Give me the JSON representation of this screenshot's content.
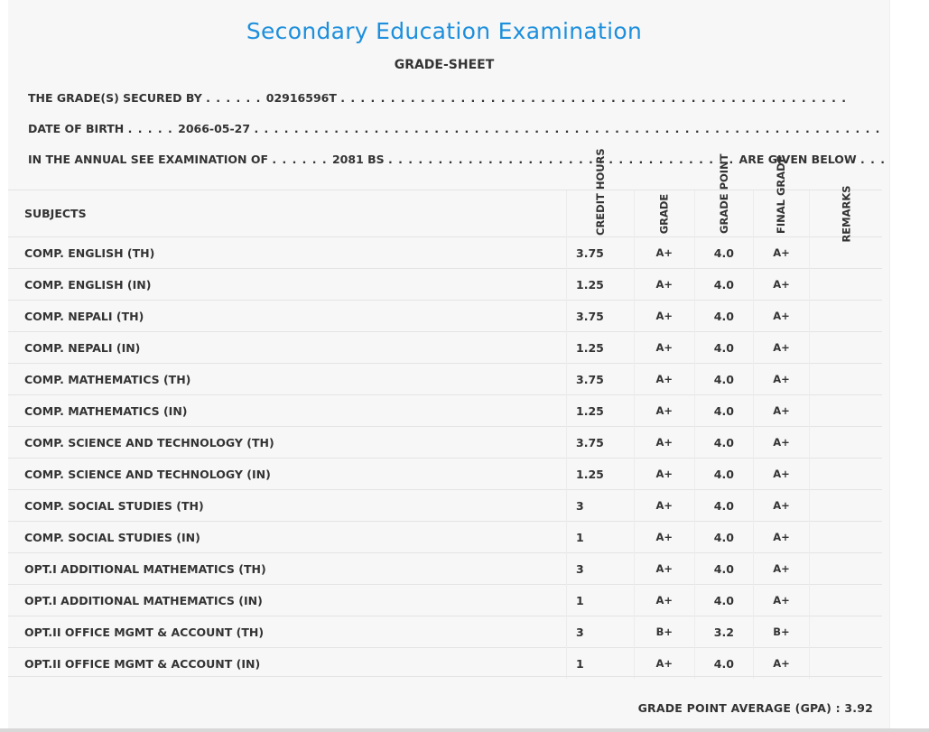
{
  "header": {
    "title": "Secondary Education Examination",
    "subtitle": "GRADE-SHEET"
  },
  "info": {
    "secured_by_label": "THE GRADE(S) SECURED BY",
    "secured_by_value": "02916596T",
    "dob_label": "DATE OF BIRTH",
    "dob_value": "2066-05-27",
    "exam_label": "IN THE ANNUAL SEE EXAMINATION OF",
    "exam_value": "2081 BS",
    "exam_suffix": "ARE GIVEN BELOW"
  },
  "table": {
    "headers": {
      "subjects": "SUBJECTS",
      "credit_hours": "CREDIT HOURS",
      "grade": "GRADE",
      "grade_point": "GRADE POINT",
      "final_grade": "FINAL GRADE",
      "remarks": "REMARKS"
    },
    "rows": [
      {
        "subject": "COMP. ENGLISH (TH)",
        "credit": "3.75",
        "grade": "A+",
        "point": "4.0",
        "final": "A+",
        "remarks": ""
      },
      {
        "subject": "COMP. ENGLISH (IN)",
        "credit": "1.25",
        "grade": "A+",
        "point": "4.0",
        "final": "A+",
        "remarks": ""
      },
      {
        "subject": "COMP. NEPALI (TH)",
        "credit": "3.75",
        "grade": "A+",
        "point": "4.0",
        "final": "A+",
        "remarks": ""
      },
      {
        "subject": "COMP. NEPALI (IN)",
        "credit": "1.25",
        "grade": "A+",
        "point": "4.0",
        "final": "A+",
        "remarks": ""
      },
      {
        "subject": "COMP. MATHEMATICS (TH)",
        "credit": "3.75",
        "grade": "A+",
        "point": "4.0",
        "final": "A+",
        "remarks": ""
      },
      {
        "subject": "COMP. MATHEMATICS (IN)",
        "credit": "1.25",
        "grade": "A+",
        "point": "4.0",
        "final": "A+",
        "remarks": ""
      },
      {
        "subject": "COMP. SCIENCE AND TECHNOLOGY (TH)",
        "credit": "3.75",
        "grade": "A+",
        "point": "4.0",
        "final": "A+",
        "remarks": ""
      },
      {
        "subject": "COMP. SCIENCE AND TECHNOLOGY (IN)",
        "credit": "1.25",
        "grade": "A+",
        "point": "4.0",
        "final": "A+",
        "remarks": ""
      },
      {
        "subject": "COMP. SOCIAL STUDIES (TH)",
        "credit": "3",
        "grade": "A+",
        "point": "4.0",
        "final": "A+",
        "remarks": ""
      },
      {
        "subject": "COMP. SOCIAL STUDIES (IN)",
        "credit": "1",
        "grade": "A+",
        "point": "4.0",
        "final": "A+",
        "remarks": ""
      },
      {
        "subject": "OPT.I ADDITIONAL MATHEMATICS (TH)",
        "credit": "3",
        "grade": "A+",
        "point": "4.0",
        "final": "A+",
        "remarks": ""
      },
      {
        "subject": "OPT.I ADDITIONAL MATHEMATICS (IN)",
        "credit": "1",
        "grade": "A+",
        "point": "4.0",
        "final": "A+",
        "remarks": ""
      },
      {
        "subject": "OPT.II OFFICE MGMT & ACCOUNT (TH)",
        "credit": "3",
        "grade": "B+",
        "point": "3.2",
        "final": "B+",
        "remarks": ""
      },
      {
        "subject": "OPT.II OFFICE MGMT & ACCOUNT (IN)",
        "credit": "1",
        "grade": "A+",
        "point": "4.0",
        "final": "A+",
        "remarks": ""
      }
    ]
  },
  "footer": {
    "gpa_label": "GRADE POINT AVERAGE (GPA) :",
    "gpa_value": "3.92"
  }
}
